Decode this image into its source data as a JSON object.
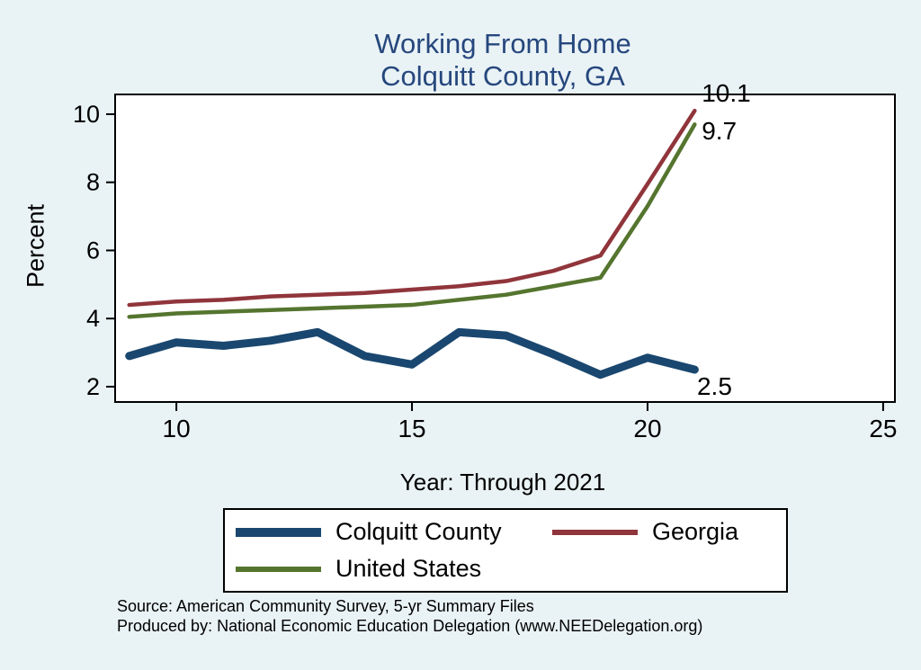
{
  "title": {
    "line1": "Working From Home",
    "line2": "Colquitt County, GA"
  },
  "chart_data": {
    "type": "line",
    "x": [
      9,
      10,
      11,
      12,
      13,
      14,
      15,
      16,
      17,
      18,
      19,
      20,
      21
    ],
    "series": [
      {
        "name": "Colquitt County",
        "color": "#1a476f",
        "width": 9,
        "values": [
          2.9,
          3.3,
          3.2,
          3.35,
          3.6,
          2.9,
          2.65,
          3.6,
          3.5,
          2.95,
          2.35,
          2.85,
          2.5
        ]
      },
      {
        "name": "Georgia",
        "color": "#90353b",
        "width": 4.5,
        "values": [
          4.4,
          4.5,
          4.55,
          4.65,
          4.7,
          4.75,
          4.85,
          4.95,
          5.1,
          5.4,
          5.85,
          7.95,
          10.1
        ]
      },
      {
        "name": "United States",
        "color": "#55752f",
        "width": 4.5,
        "values": [
          4.05,
          4.15,
          4.2,
          4.25,
          4.3,
          4.35,
          4.4,
          4.55,
          4.7,
          4.95,
          5.2,
          7.3,
          9.7
        ]
      }
    ],
    "annotations": [
      {
        "text": "10.1",
        "x": 21.15,
        "y": 10.6
      },
      {
        "text": "9.7",
        "x": 21.15,
        "y": 9.5
      },
      {
        "text": "2.5",
        "x": 21.05,
        "y": 2.0
      }
    ],
    "title": "Working From Home Colquitt County, GA",
    "xlabel": "Year: Through 2021",
    "ylabel": "Percent",
    "xticks": [
      10,
      15,
      20,
      25
    ],
    "yticks": [
      2,
      4,
      6,
      8,
      10
    ],
    "xlim": [
      8.7,
      25.25
    ],
    "ylim": [
      1.55,
      10.58
    ],
    "grid": "off",
    "legend_position": "bottom"
  },
  "legend": {
    "items": [
      "Colquitt County",
      "Georgia",
      "United States"
    ]
  },
  "footer": {
    "line1": "Source: American Community Survey, 5-yr Summary Files",
    "line2": "Produced by: National Economic Education Delegation (www.NEEDelegation.org)"
  },
  "colors": {
    "background": "#e9f2f5",
    "plot_background": "#ffffff",
    "title_text": "#26477d",
    "axis_text": "#000000"
  }
}
